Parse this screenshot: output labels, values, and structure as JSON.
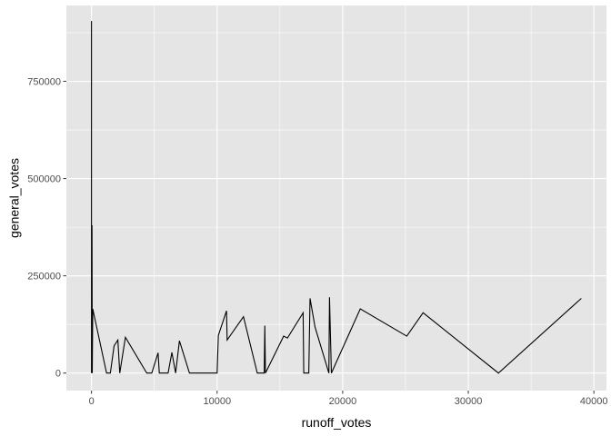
{
  "chart_data": {
    "type": "line",
    "xlabel": "runoff_votes",
    "ylabel": "general_votes",
    "xlim": [
      -2000,
      41000
    ],
    "ylim": [
      -45000,
      945000
    ],
    "x_ticks": [
      0,
      10000,
      20000,
      30000,
      40000
    ],
    "x_tick_labels": [
      "0",
      "10000",
      "20000",
      "30000",
      "40000"
    ],
    "y_ticks": [
      0,
      250000,
      500000,
      750000
    ],
    "y_tick_labels": [
      "0",
      "250000",
      "500000",
      "750000"
    ],
    "grid": true,
    "legend": "none",
    "colors": {
      "panel": "#e5e5e5",
      "grid": "#ffffff",
      "line": "#000000",
      "tick_label": "#4d4d4d"
    },
    "series": [
      {
        "values": [
          [
            0,
            0
          ],
          [
            0,
            905000
          ],
          [
            0,
            350000
          ],
          [
            20,
            0
          ],
          [
            40,
            380000
          ],
          [
            60,
            0
          ],
          [
            100,
            165000
          ],
          [
            1200,
            0
          ],
          [
            1500,
            0
          ],
          [
            1800,
            70000
          ],
          [
            2100,
            85000
          ],
          [
            2250,
            0
          ],
          [
            2700,
            92000
          ],
          [
            4400,
            0
          ],
          [
            4800,
            0
          ],
          [
            5300,
            52000
          ],
          [
            5400,
            0
          ],
          [
            6100,
            0
          ],
          [
            6400,
            53000
          ],
          [
            6700,
            0
          ],
          [
            7000,
            83000
          ],
          [
            7800,
            0
          ],
          [
            10000,
            0
          ],
          [
            10100,
            97000
          ],
          [
            10750,
            160000
          ],
          [
            10800,
            85000
          ],
          [
            12100,
            145000
          ],
          [
            13200,
            0
          ],
          [
            13750,
            0
          ],
          [
            13800,
            122000
          ],
          [
            13850,
            0
          ],
          [
            15300,
            95000
          ],
          [
            15600,
            90000
          ],
          [
            16850,
            155000
          ],
          [
            16900,
            0
          ],
          [
            17300,
            0
          ],
          [
            17400,
            192000
          ],
          [
            17800,
            118000
          ],
          [
            18900,
            0
          ],
          [
            18950,
            195000
          ],
          [
            19100,
            0
          ],
          [
            21400,
            165000
          ],
          [
            25100,
            95000
          ],
          [
            26400,
            155000
          ],
          [
            32400,
            0
          ],
          [
            39000,
            192000
          ]
        ]
      }
    ]
  }
}
